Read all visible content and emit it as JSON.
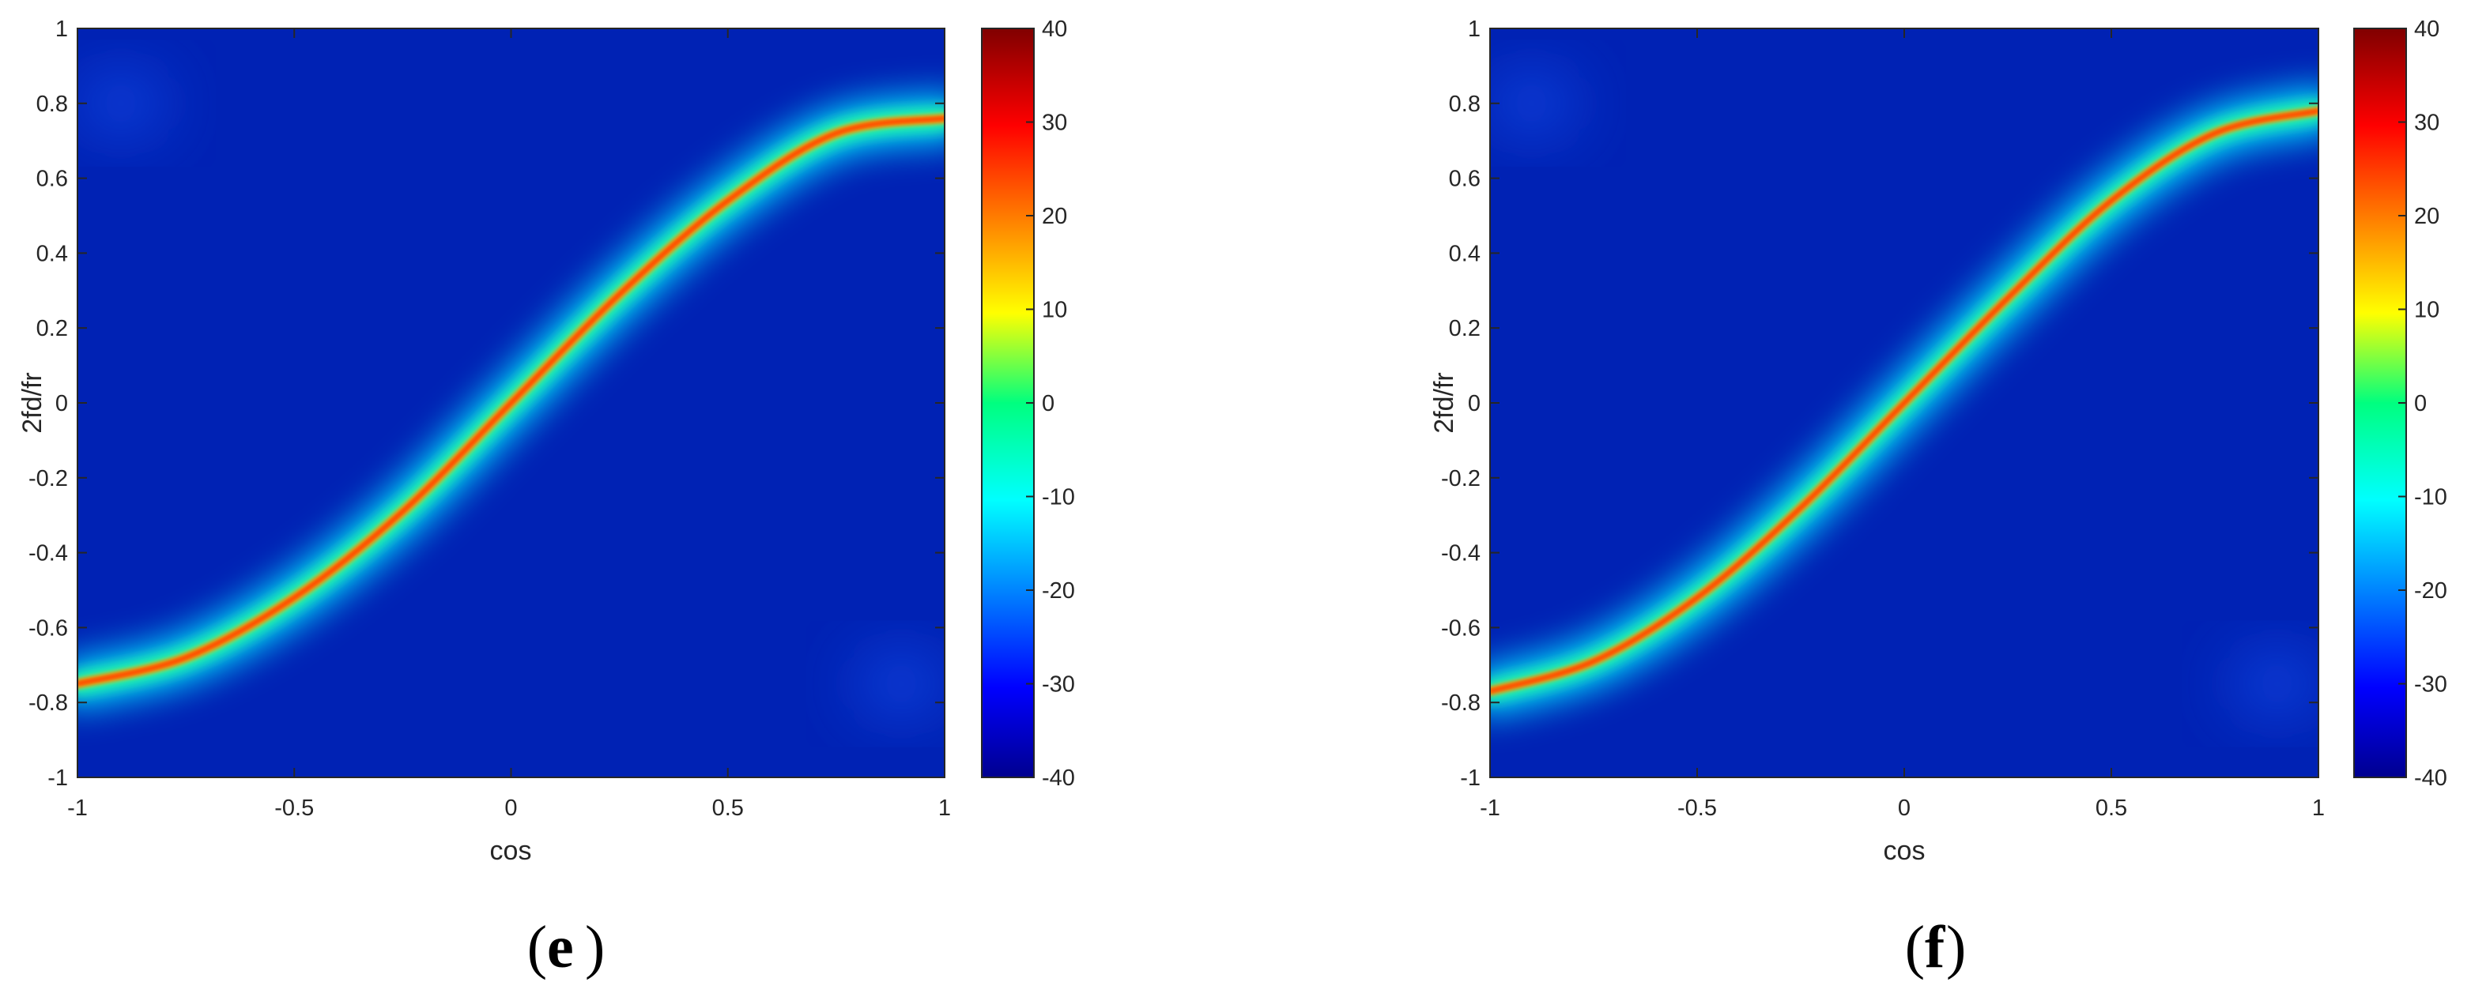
{
  "chart_data": [
    {
      "type": "heatmap",
      "panel_label": "e",
      "xlabel": "cos",
      "ylabel": "2fd/fr",
      "xlim": [
        -1,
        1
      ],
      "ylim": [
        -1,
        1
      ],
      "x_ticks": [
        "-1",
        "-0.5",
        "0",
        "0.5",
        "1"
      ],
      "y_ticks": [
        "1",
        "0.8",
        "0.6",
        "0.4",
        "0.2",
        "0",
        "-0.2",
        "-0.4",
        "-0.6",
        "-0.8",
        "-1"
      ],
      "colorbar": {
        "colormap": "jet",
        "range": [
          -40,
          40
        ],
        "ticks": [
          "40",
          "30",
          "20",
          "10",
          "0",
          "-10",
          "-20",
          "-30",
          "-40"
        ]
      },
      "ridge": {
        "description_points": [
          [
            -1.0,
            -0.75
          ],
          [
            -0.75,
            -0.68
          ],
          [
            -0.5,
            -0.52
          ],
          [
            -0.25,
            -0.29
          ],
          [
            0.0,
            0.0
          ],
          [
            0.25,
            0.29
          ],
          [
            0.5,
            0.54
          ],
          [
            0.75,
            0.72
          ],
          [
            1.0,
            0.76
          ]
        ]
      },
      "grid": false
    },
    {
      "type": "heatmap",
      "panel_label": "f",
      "xlabel": "cos",
      "ylabel": "2fd/fr",
      "xlim": [
        -1,
        1
      ],
      "ylim": [
        -1,
        1
      ],
      "x_ticks": [
        "-1",
        "-0.5",
        "0",
        "0.5",
        "1"
      ],
      "y_ticks": [
        "1",
        "0.8",
        "0.6",
        "0.4",
        "0.2",
        "0",
        "-0.2",
        "-0.4",
        "-0.6",
        "-0.8",
        "-1"
      ],
      "colorbar": {
        "colormap": "jet",
        "range": [
          -40,
          40
        ],
        "ticks": [
          "40",
          "30",
          "20",
          "10",
          "0",
          "-10",
          "-20",
          "-30",
          "-40"
        ]
      },
      "ridge": {
        "description_points": [
          [
            -1.0,
            -0.77
          ],
          [
            -0.75,
            -0.69
          ],
          [
            -0.5,
            -0.52
          ],
          [
            -0.25,
            -0.28
          ],
          [
            0.0,
            0.0
          ],
          [
            0.25,
            0.28
          ],
          [
            0.5,
            0.54
          ],
          [
            0.75,
            0.72
          ],
          [
            1.0,
            0.78
          ]
        ]
      },
      "grid": false
    }
  ]
}
